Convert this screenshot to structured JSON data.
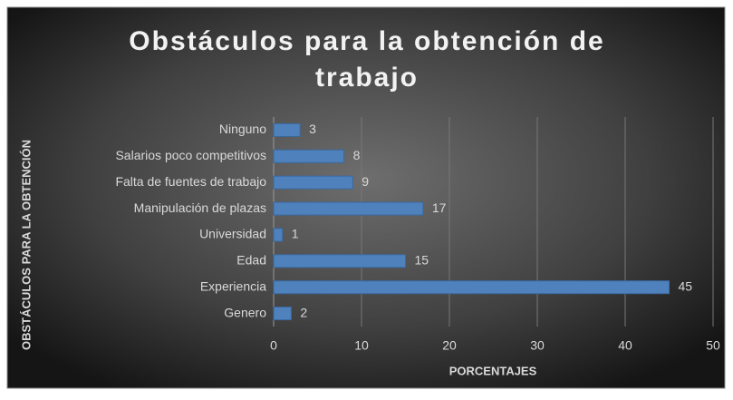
{
  "chart_data": {
    "type": "bar",
    "orientation": "horizontal",
    "title": "Obstáculos para la obtención de trabajo",
    "y_label": "OBSTÁCULOS PARA LA OBTENCIÓN",
    "x_label": "PORCENTAJES",
    "categories": [
      "Ninguno",
      "Salarios poco competitivos",
      "Falta de fuentes de trabajo",
      "Manipulación de plazas",
      "Universidad",
      "Edad",
      "Experiencia",
      "Genero"
    ],
    "values": [
      3,
      8,
      9,
      17,
      1,
      15,
      45,
      2
    ],
    "color": "#4f81bd",
    "xlim": [
      0,
      50
    ],
    "xticks": [
      0,
      10,
      20,
      30,
      40,
      50
    ],
    "grid": true
  }
}
